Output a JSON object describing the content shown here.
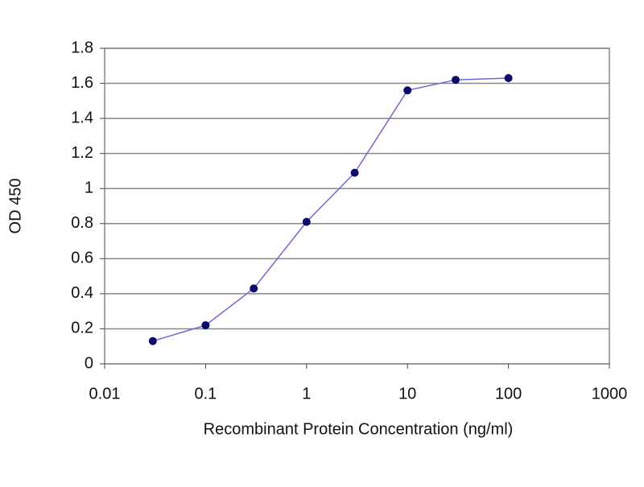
{
  "chart_data": {
    "type": "line",
    "x_label": "Recombinant Protein Concentration (ng/ml)",
    "y_label": "OD 450",
    "x": [
      0.03,
      0.1,
      0.3,
      1,
      3,
      10,
      30,
      100
    ],
    "series": [
      {
        "color": "#6b6bd6",
        "marker_color": "#0a0a6e",
        "values": [
          0.13,
          0.22,
          0.43,
          0.81,
          1.09,
          1.56,
          1.62,
          1.63
        ]
      }
    ],
    "xscale": "log",
    "xlim": [
      0.01,
      1000
    ],
    "xticks": [
      0.01,
      0.1,
      1,
      10,
      100,
      1000
    ],
    "ylim": [
      0,
      1.8
    ],
    "yticks": [
      0,
      0.2,
      0.4,
      0.6,
      0.8,
      1,
      1.2,
      1.4,
      1.6,
      1.8
    ],
    "grid": true
  }
}
